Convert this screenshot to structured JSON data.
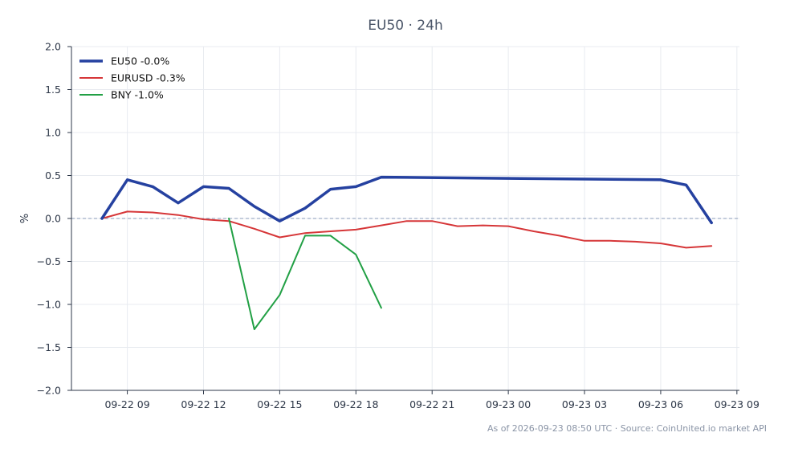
{
  "chart_data": {
    "type": "line",
    "title": "EU50 · 24h",
    "ylabel": "%",
    "xlabel": "",
    "ylim": [
      -2.0,
      2.0
    ],
    "yticks": [
      2.0,
      1.5,
      1.0,
      0.5,
      0.0,
      -0.5,
      -1.0,
      -1.5,
      -2.0
    ],
    "ytick_labels": [
      "2.0",
      "1.5",
      "1.0",
      "0.5",
      "0.0",
      "−0.5",
      "−1.0",
      "−1.5",
      "−2.0"
    ],
    "xlim": [
      "2026-09-22 06:48",
      "2026-09-23 09:06"
    ],
    "xticks": [
      "2026-09-22 09:00",
      "2026-09-22 12:00",
      "2026-09-22 15:00",
      "2026-09-22 18:00",
      "2026-09-22 21:00",
      "2026-09-23 00:00",
      "2026-09-23 03:00",
      "2026-09-23 06:00",
      "2026-09-23 09:00"
    ],
    "xtick_labels": [
      "09-22 09",
      "09-22 12",
      "09-22 15",
      "09-22 18",
      "09-22 21",
      "09-23 00",
      "09-23 03",
      "09-23 06",
      "09-23 09"
    ],
    "zero_line": true,
    "grid": true,
    "legend_position": "top-left",
    "series": [
      {
        "name": "EU50 -0.0%",
        "color": "#2541a0",
        "x": [
          "2026-09-22 08:00",
          "2026-09-22 09:00",
          "2026-09-22 10:00",
          "2026-09-22 11:00",
          "2026-09-22 12:00",
          "2026-09-22 13:00",
          "2026-09-22 14:00",
          "2026-09-22 15:00",
          "2026-09-22 16:00",
          "2026-09-22 17:00",
          "2026-09-22 18:00",
          "2026-09-22 19:00",
          "2026-09-23 06:00",
          "2026-09-23 07:00",
          "2026-09-23 08:00"
        ],
        "y": [
          0.0,
          0.45,
          0.37,
          0.18,
          0.37,
          0.35,
          0.14,
          -0.03,
          0.12,
          0.34,
          0.37,
          0.48,
          0.45,
          0.39,
          -0.05
        ]
      },
      {
        "name": "EURUSD -0.3%",
        "color": "#d63638",
        "x": [
          "2026-09-22 08:00",
          "2026-09-22 09:00",
          "2026-09-22 10:00",
          "2026-09-22 11:00",
          "2026-09-22 12:00",
          "2026-09-22 13:00",
          "2026-09-22 14:00",
          "2026-09-22 15:00",
          "2026-09-22 16:00",
          "2026-09-22 17:00",
          "2026-09-22 18:00",
          "2026-09-22 19:00",
          "2026-09-22 20:00",
          "2026-09-22 21:00",
          "2026-09-22 22:00",
          "2026-09-22 23:00",
          "2026-09-23 00:00",
          "2026-09-23 01:00",
          "2026-09-23 02:00",
          "2026-09-23 03:00",
          "2026-09-23 04:00",
          "2026-09-23 05:00",
          "2026-09-23 06:00",
          "2026-09-23 07:00",
          "2026-09-23 08:00"
        ],
        "y": [
          0.0,
          0.08,
          0.07,
          0.04,
          -0.01,
          -0.03,
          -0.12,
          -0.22,
          -0.17,
          -0.15,
          -0.13,
          -0.08,
          -0.03,
          -0.03,
          -0.09,
          -0.08,
          -0.09,
          -0.15,
          -0.2,
          -0.26,
          -0.26,
          -0.27,
          -0.29,
          -0.34,
          -0.32
        ]
      },
      {
        "name": "BNY -1.0%",
        "color": "#22a045",
        "x": [
          "2026-09-22 13:00",
          "2026-09-22 14:00",
          "2026-09-22 15:00",
          "2026-09-22 16:00",
          "2026-09-22 17:00",
          "2026-09-22 18:00",
          "2026-09-22 19:00"
        ],
        "y": [
          0.0,
          -1.29,
          -0.89,
          -0.2,
          -0.2,
          -0.42,
          -1.04
        ]
      }
    ]
  },
  "footer": "As of 2026-09-23 08:50 UTC · Source: CoinUnited.io market API"
}
